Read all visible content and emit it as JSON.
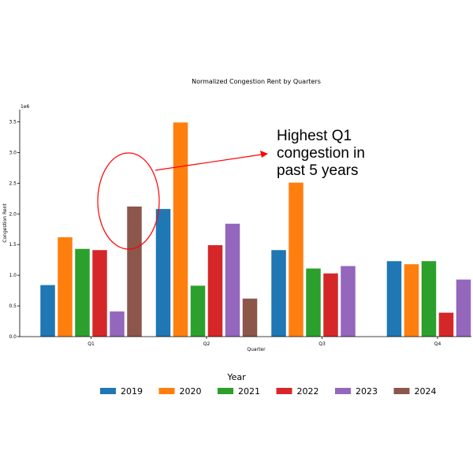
{
  "chart_data": {
    "type": "bar",
    "title": "Normalized Congestion Rent by Quarters",
    "xlabel": "Quarter",
    "ylabel": "Congestion Rent",
    "offset_label": "1e6",
    "categories": [
      "Q1",
      "Q2",
      "Q3",
      "Q4"
    ],
    "ylim": [
      0,
      3700000
    ],
    "yticks": [
      {
        "value": 0,
        "label": "0.0"
      },
      {
        "value": 500000,
        "label": "0.5"
      },
      {
        "value": 1000000,
        "label": "1.0"
      },
      {
        "value": 1500000,
        "label": "1.5"
      },
      {
        "value": 2000000,
        "label": "2.0"
      },
      {
        "value": 2500000,
        "label": "2.5"
      },
      {
        "value": 3000000,
        "label": "3.0"
      },
      {
        "value": 3500000,
        "label": "3.5"
      }
    ],
    "grid": false,
    "legend": {
      "title": "Year",
      "placement": "bottom-center"
    },
    "series": [
      {
        "name": "2019",
        "color": "#1f77b4",
        "values": [
          840000,
          2080000,
          1410000,
          1230000
        ]
      },
      {
        "name": "2020",
        "color": "#ff7f0e",
        "values": [
          1620000,
          3490000,
          2510000,
          1180000
        ]
      },
      {
        "name": "2021",
        "color": "#2ca02c",
        "values": [
          1430000,
          830000,
          1110000,
          1230000
        ]
      },
      {
        "name": "2022",
        "color": "#d62728",
        "values": [
          1410000,
          1490000,
          1030000,
          390000
        ]
      },
      {
        "name": "2023",
        "color": "#9467bd",
        "values": [
          410000,
          1840000,
          1150000,
          930000
        ]
      },
      {
        "name": "2024",
        "color": "#8c564b",
        "values": [
          2120000,
          620000,
          null,
          null
        ]
      }
    ],
    "annotation": {
      "lines": [
        "Highest Q1",
        "congestion in",
        "past 5 years"
      ],
      "color": "#ff0000"
    }
  }
}
